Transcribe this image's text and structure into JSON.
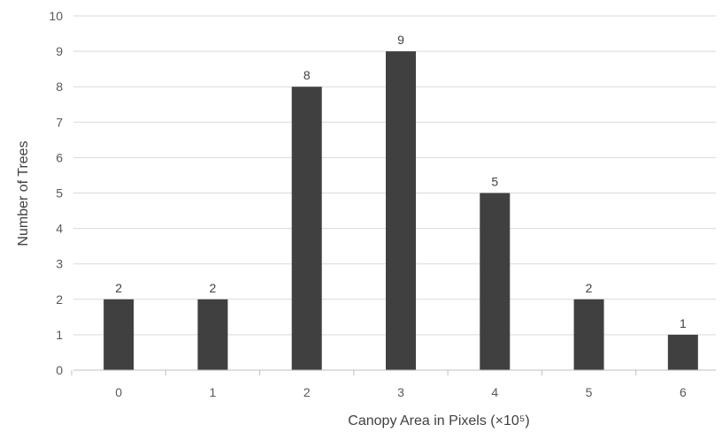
{
  "chart_data": {
    "type": "bar",
    "title": "",
    "xlabel": "Canopy Area in Pixels (×10⁵)",
    "ylabel": "Number of Trees",
    "categories": [
      "0",
      "1",
      "2",
      "3",
      "4",
      "5",
      "6"
    ],
    "values": [
      2,
      2,
      8,
      9,
      5,
      2,
      1
    ],
    "ylim": [
      0,
      10
    ],
    "yticks": [
      0,
      1,
      2,
      3,
      4,
      5,
      6,
      7,
      8,
      9,
      10
    ],
    "grid": "horizontal",
    "legend": "none",
    "data_labels": true
  },
  "colors": {
    "bar": "#404040",
    "grid": "#d9d9d9",
    "axis": "#bfbfbf",
    "tick_text": "#595959",
    "title_text": "#404040"
  }
}
